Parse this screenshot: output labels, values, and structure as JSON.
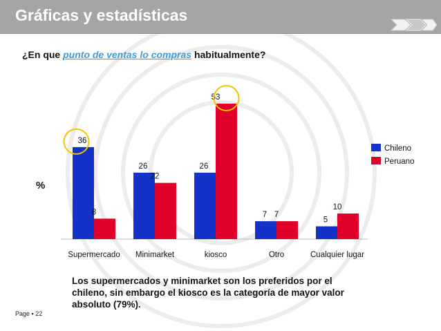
{
  "header": {
    "title": "Gráficas y estadísticas",
    "nav_icon": "chevron-steps-icon"
  },
  "question": {
    "prefix": "¿En que ",
    "highlight": "punto de ventas lo compras",
    "suffix": " habitualmente?"
  },
  "axis_unit": "%",
  "conclusion": "Los supermercados y minimarket son los preferidos por el chileno, sin embargo el kiosco es la categoría de mayor valor absoluto (79%).",
  "footer": {
    "page": "Page ▪ 22"
  },
  "chart_data": {
    "type": "bar",
    "categories": [
      "Supermercado",
      "Minimarket",
      "kiosco",
      "Otro",
      "Cualquier lugar"
    ],
    "series": [
      {
        "name": "Chileno",
        "color": "#1432c8",
        "values": [
          36,
          26,
          26,
          7,
          5
        ]
      },
      {
        "name": "Peruano",
        "color": "#e0002a",
        "values": [
          8,
          22,
          53,
          7,
          10
        ]
      }
    ],
    "ylabel": "%",
    "ylim": [
      0,
      60
    ],
    "legend": "right",
    "grid": false,
    "highlighted": [
      [
        0,
        0
      ],
      [
        2,
        1
      ]
    ],
    "highlight_color": "#f5c400"
  }
}
